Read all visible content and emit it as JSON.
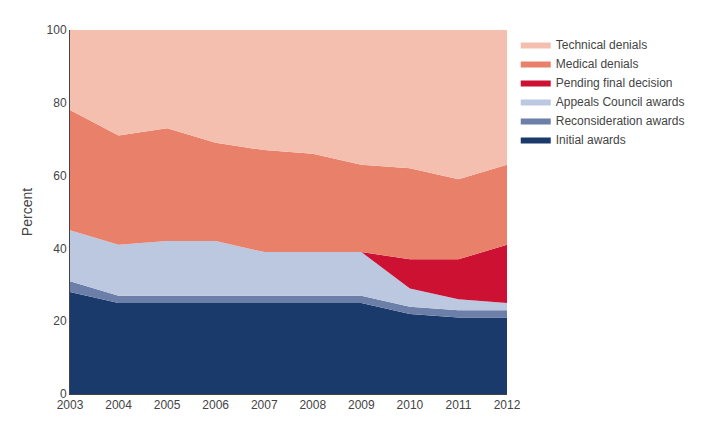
{
  "chart_data": {
    "type": "area",
    "stacked": true,
    "ylabel": "Percent",
    "x": [
      2003,
      2004,
      2005,
      2006,
      2007,
      2008,
      2009,
      2010,
      2011,
      2012
    ],
    "series": [
      {
        "name": "Initial awards",
        "color": "#1a3a6b",
        "values": [
          28,
          25,
          25,
          25,
          25,
          25,
          25,
          22,
          21,
          21
        ]
      },
      {
        "name": "Reconsideration awards",
        "color": "#6b7fa8",
        "values": [
          3,
          2,
          2,
          2,
          2,
          2,
          2,
          2,
          2,
          2
        ]
      },
      {
        "name": "Appeals Council awards",
        "color": "#bcc8e0",
        "values": [
          14,
          14,
          15,
          15,
          12,
          12,
          12,
          5,
          3,
          2
        ]
      },
      {
        "name": "Pending final decision",
        "color": "#cc1133",
        "values": [
          0,
          0,
          0,
          0,
          0,
          0,
          0,
          8,
          11,
          16
        ]
      },
      {
        "name": "Medical denials",
        "color": "#e8806a",
        "values": [
          33,
          30,
          31,
          27,
          28,
          27,
          24,
          25,
          22,
          22
        ]
      },
      {
        "name": "Technical denials",
        "color": "#f5bfb0",
        "values": [
          22,
          29,
          27,
          31,
          33,
          34,
          37,
          38,
          41,
          37
        ]
      }
    ],
    "xlim": [
      2003,
      2012
    ],
    "xticks": [
      2003,
      2004,
      2005,
      2006,
      2007,
      2008,
      2009,
      2010,
      2011,
      2012
    ],
    "ylim": [
      0,
      100
    ],
    "yticks": [
      0,
      20,
      40,
      60,
      80,
      100
    ],
    "grid": false,
    "legend": "right"
  }
}
